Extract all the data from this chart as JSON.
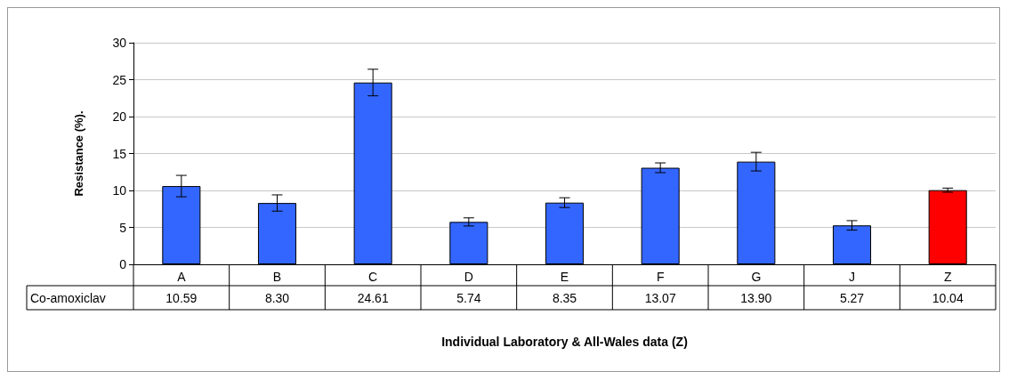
{
  "chart_data": {
    "type": "bar",
    "xlabel": "Individual Laboratory & All-Wales data (Z)",
    "ylabel": "Resistance (%).",
    "categories": [
      "A",
      "B",
      "C",
      "D",
      "E",
      "F",
      "G",
      "J",
      "Z"
    ],
    "series": [
      {
        "name": "Co-amoxiclav",
        "values": [
          10.59,
          8.3,
          24.61,
          5.74,
          8.35,
          13.07,
          13.9,
          5.27,
          10.04
        ],
        "colors": [
          "#3366ff",
          "#3366ff",
          "#3366ff",
          "#3366ff",
          "#3366ff",
          "#3366ff",
          "#3366ff",
          "#3366ff",
          "#ff0000"
        ],
        "value_labels": [
          "10.59",
          "8.30",
          "24.61",
          "5.74",
          "8.35",
          "13.07",
          "13.90",
          "5.27",
          "10.04"
        ],
        "errors": [
          1.45,
          1.1,
          1.8,
          0.55,
          0.66,
          0.66,
          1.26,
          0.64,
          0.28
        ]
      }
    ],
    "ylim": [
      0,
      30
    ],
    "yticks": [
      0,
      5,
      10,
      15,
      20,
      25,
      30
    ],
    "grid": "y",
    "legend": "bottom left"
  }
}
